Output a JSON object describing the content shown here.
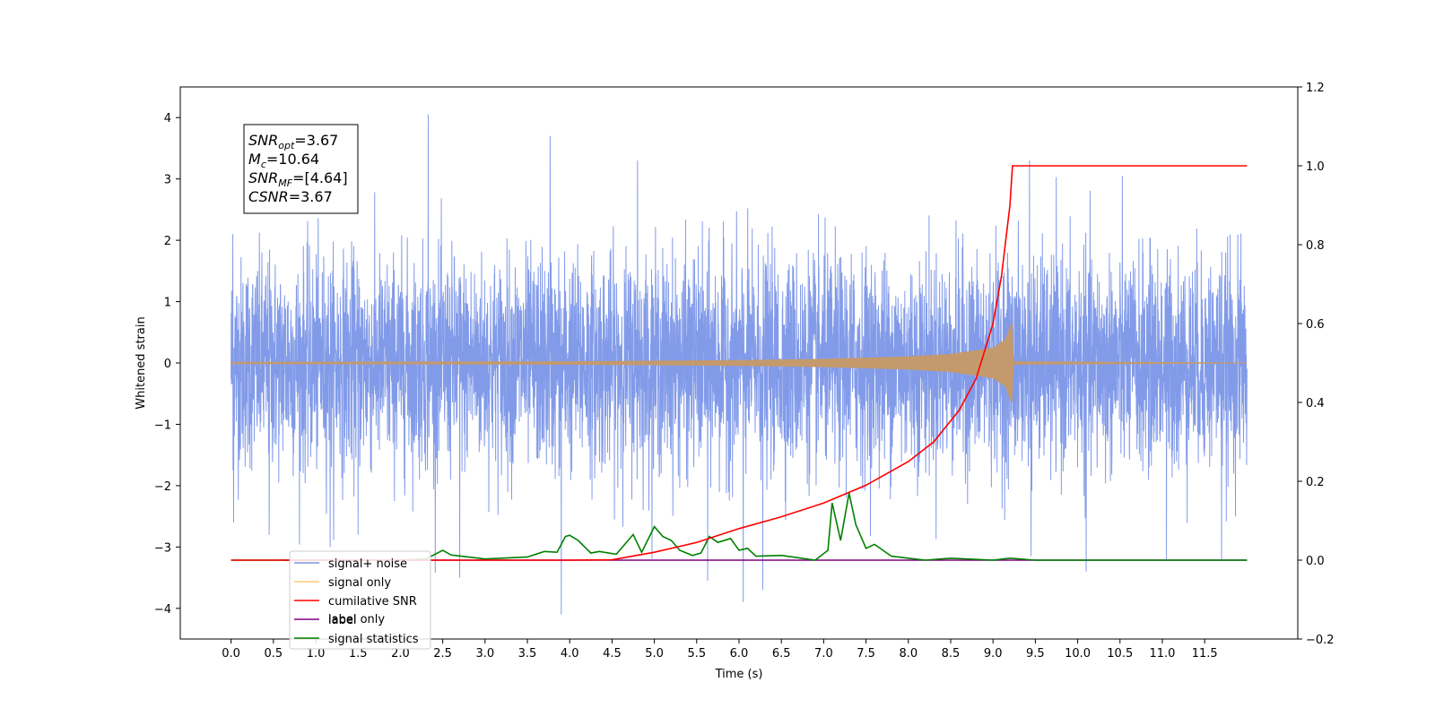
{
  "chart_data": {
    "type": "line",
    "xlabel": "Time (s)",
    "ylabel": "Whitened strain",
    "xlim": [
      -0.6,
      12.6
    ],
    "ylim_left": [
      -4.5,
      4.5
    ],
    "ylim_right": [
      -0.2,
      1.2
    ],
    "x_ticks": [
      "0.0",
      "0.5",
      "1.0",
      "1.5",
      "2.0",
      "2.5",
      "3.0",
      "3.5",
      "4.0",
      "4.5",
      "5.0",
      "5.5",
      "6.0",
      "6.5",
      "7.0",
      "7.5",
      "8.0",
      "8.5",
      "9.0",
      "9.5",
      "10.0",
      "10.5",
      "11.0",
      "11.5"
    ],
    "y_left_ticks": [
      "4",
      "3",
      "2",
      "1",
      "0",
      "−1",
      "−2",
      "−3",
      "−4"
    ],
    "y_right_ticks": [
      "1.2",
      "1.0",
      "0.8",
      "0.6",
      "0.4",
      "0.2",
      "0.0",
      "−0.2"
    ],
    "annotation": {
      "lines": [
        {
          "base": "SNR",
          "sub": "opt",
          "rest": "=3.67"
        },
        {
          "base": "M",
          "sub": "c",
          "rest": "=10.64"
        },
        {
          "base": "SNR",
          "sub": "MF",
          "rest": "=[4.64]"
        },
        {
          "base": "CSNR",
          "sub": "",
          "rest": "=3.67"
        }
      ]
    },
    "legend": {
      "position": "lower-left",
      "entries": [
        "signal+ noise",
        "signal only",
        "cumilative SNR",
        "label",
        "signal statistics"
      ],
      "hidden_behind_text": "label only"
    },
    "series": [
      {
        "name": "signal+ noise",
        "axis": "left",
        "color": "#7b96e8",
        "note_visual": "dense noise band",
        "x_range": [
          0.0,
          12.0
        ],
        "band_upper_typical": 1.6,
        "band_lower_typical": -1.6,
        "spikes": [
          {
            "x": 0.02,
            "y": 2.1
          },
          {
            "x": 0.03,
            "y": -2.6
          },
          {
            "x": 0.45,
            "y": -2.8
          },
          {
            "x": 1.17,
            "y": -3.0
          },
          {
            "x": 1.5,
            "y": -2.8
          },
          {
            "x": 2.33,
            "y": 4.05
          },
          {
            "x": 3.77,
            "y": 3.7
          },
          {
            "x": 3.9,
            "y": -4.1
          },
          {
            "x": 4.8,
            "y": 3.3
          },
          {
            "x": 5.63,
            "y": -3.55
          },
          {
            "x": 6.05,
            "y": -3.9
          },
          {
            "x": 6.28,
            "y": -3.7
          },
          {
            "x": 9.43,
            "y": 3.3
          },
          {
            "x": 9.45,
            "y": -3.15
          },
          {
            "x": 10.1,
            "y": -3.4
          },
          {
            "x": 11.05,
            "y": -3.2
          },
          {
            "x": 11.7,
            "y": -3.2
          },
          {
            "x": 2.7,
            "y": -3.5
          }
        ]
      },
      {
        "name": "signal only",
        "axis": "left",
        "color": "#c49a6c",
        "note_visual": "chirp envelope",
        "envelope": [
          {
            "x": 0.0,
            "a": 0.01
          },
          {
            "x": 4.0,
            "a": 0.02
          },
          {
            "x": 6.0,
            "a": 0.04
          },
          {
            "x": 7.0,
            "a": 0.06
          },
          {
            "x": 8.0,
            "a": 0.1
          },
          {
            "x": 8.5,
            "a": 0.14
          },
          {
            "x": 9.0,
            "a": 0.24
          },
          {
            "x": 9.15,
            "a": 0.38
          },
          {
            "x": 9.22,
            "a": 0.65
          },
          {
            "x": 9.24,
            "a": 0.02
          },
          {
            "x": 12.0,
            "a": 0.0
          }
        ]
      },
      {
        "name": "cumilative SNR",
        "axis": "right",
        "color": "#ff0000",
        "points": [
          [
            0.0,
            0.0
          ],
          [
            4.0,
            0.0
          ],
          [
            4.5,
            0.001
          ],
          [
            5.0,
            0.02
          ],
          [
            5.5,
            0.045
          ],
          [
            6.0,
            0.08
          ],
          [
            6.5,
            0.11
          ],
          [
            7.0,
            0.145
          ],
          [
            7.5,
            0.19
          ],
          [
            8.0,
            0.25
          ],
          [
            8.3,
            0.3
          ],
          [
            8.6,
            0.38
          ],
          [
            8.8,
            0.46
          ],
          [
            9.0,
            0.6
          ],
          [
            9.1,
            0.72
          ],
          [
            9.2,
            0.9
          ],
          [
            9.23,
            1.0
          ],
          [
            12.0,
            1.0
          ]
        ]
      },
      {
        "name": "label",
        "axis": "right",
        "color": "#800080",
        "points": [
          [
            0.6,
            0.0
          ],
          [
            12.0,
            0.0
          ]
        ]
      },
      {
        "name": "signal statistics",
        "axis": "right",
        "color": "#008000",
        "points": [
          [
            0.0,
            0.0
          ],
          [
            2.0,
            0.0
          ],
          [
            2.3,
            0.003
          ],
          [
            2.5,
            0.025
          ],
          [
            2.6,
            0.013
          ],
          [
            3.0,
            0.003
          ],
          [
            3.5,
            0.008
          ],
          [
            3.7,
            0.022
          ],
          [
            3.85,
            0.02
          ],
          [
            3.95,
            0.06
          ],
          [
            4.0,
            0.063
          ],
          [
            4.1,
            0.05
          ],
          [
            4.25,
            0.018
          ],
          [
            4.35,
            0.022
          ],
          [
            4.55,
            0.015
          ],
          [
            4.75,
            0.065
          ],
          [
            4.85,
            0.02
          ],
          [
            5.0,
            0.085
          ],
          [
            5.1,
            0.06
          ],
          [
            5.2,
            0.05
          ],
          [
            5.3,
            0.025
          ],
          [
            5.45,
            0.012
          ],
          [
            5.55,
            0.018
          ],
          [
            5.65,
            0.06
          ],
          [
            5.75,
            0.045
          ],
          [
            5.9,
            0.055
          ],
          [
            6.0,
            0.025
          ],
          [
            6.1,
            0.03
          ],
          [
            6.2,
            0.01
          ],
          [
            6.5,
            0.012
          ],
          [
            6.9,
            0.0
          ],
          [
            7.05,
            0.025
          ],
          [
            7.1,
            0.145
          ],
          [
            7.2,
            0.05
          ],
          [
            7.3,
            0.17
          ],
          [
            7.38,
            0.09
          ],
          [
            7.5,
            0.03
          ],
          [
            7.6,
            0.04
          ],
          [
            7.8,
            0.01
          ],
          [
            8.2,
            0.0
          ],
          [
            8.5,
            0.005
          ],
          [
            9.0,
            0.0
          ],
          [
            9.2,
            0.005
          ],
          [
            9.5,
            0.0
          ],
          [
            12.0,
            0.0
          ]
        ]
      }
    ]
  }
}
